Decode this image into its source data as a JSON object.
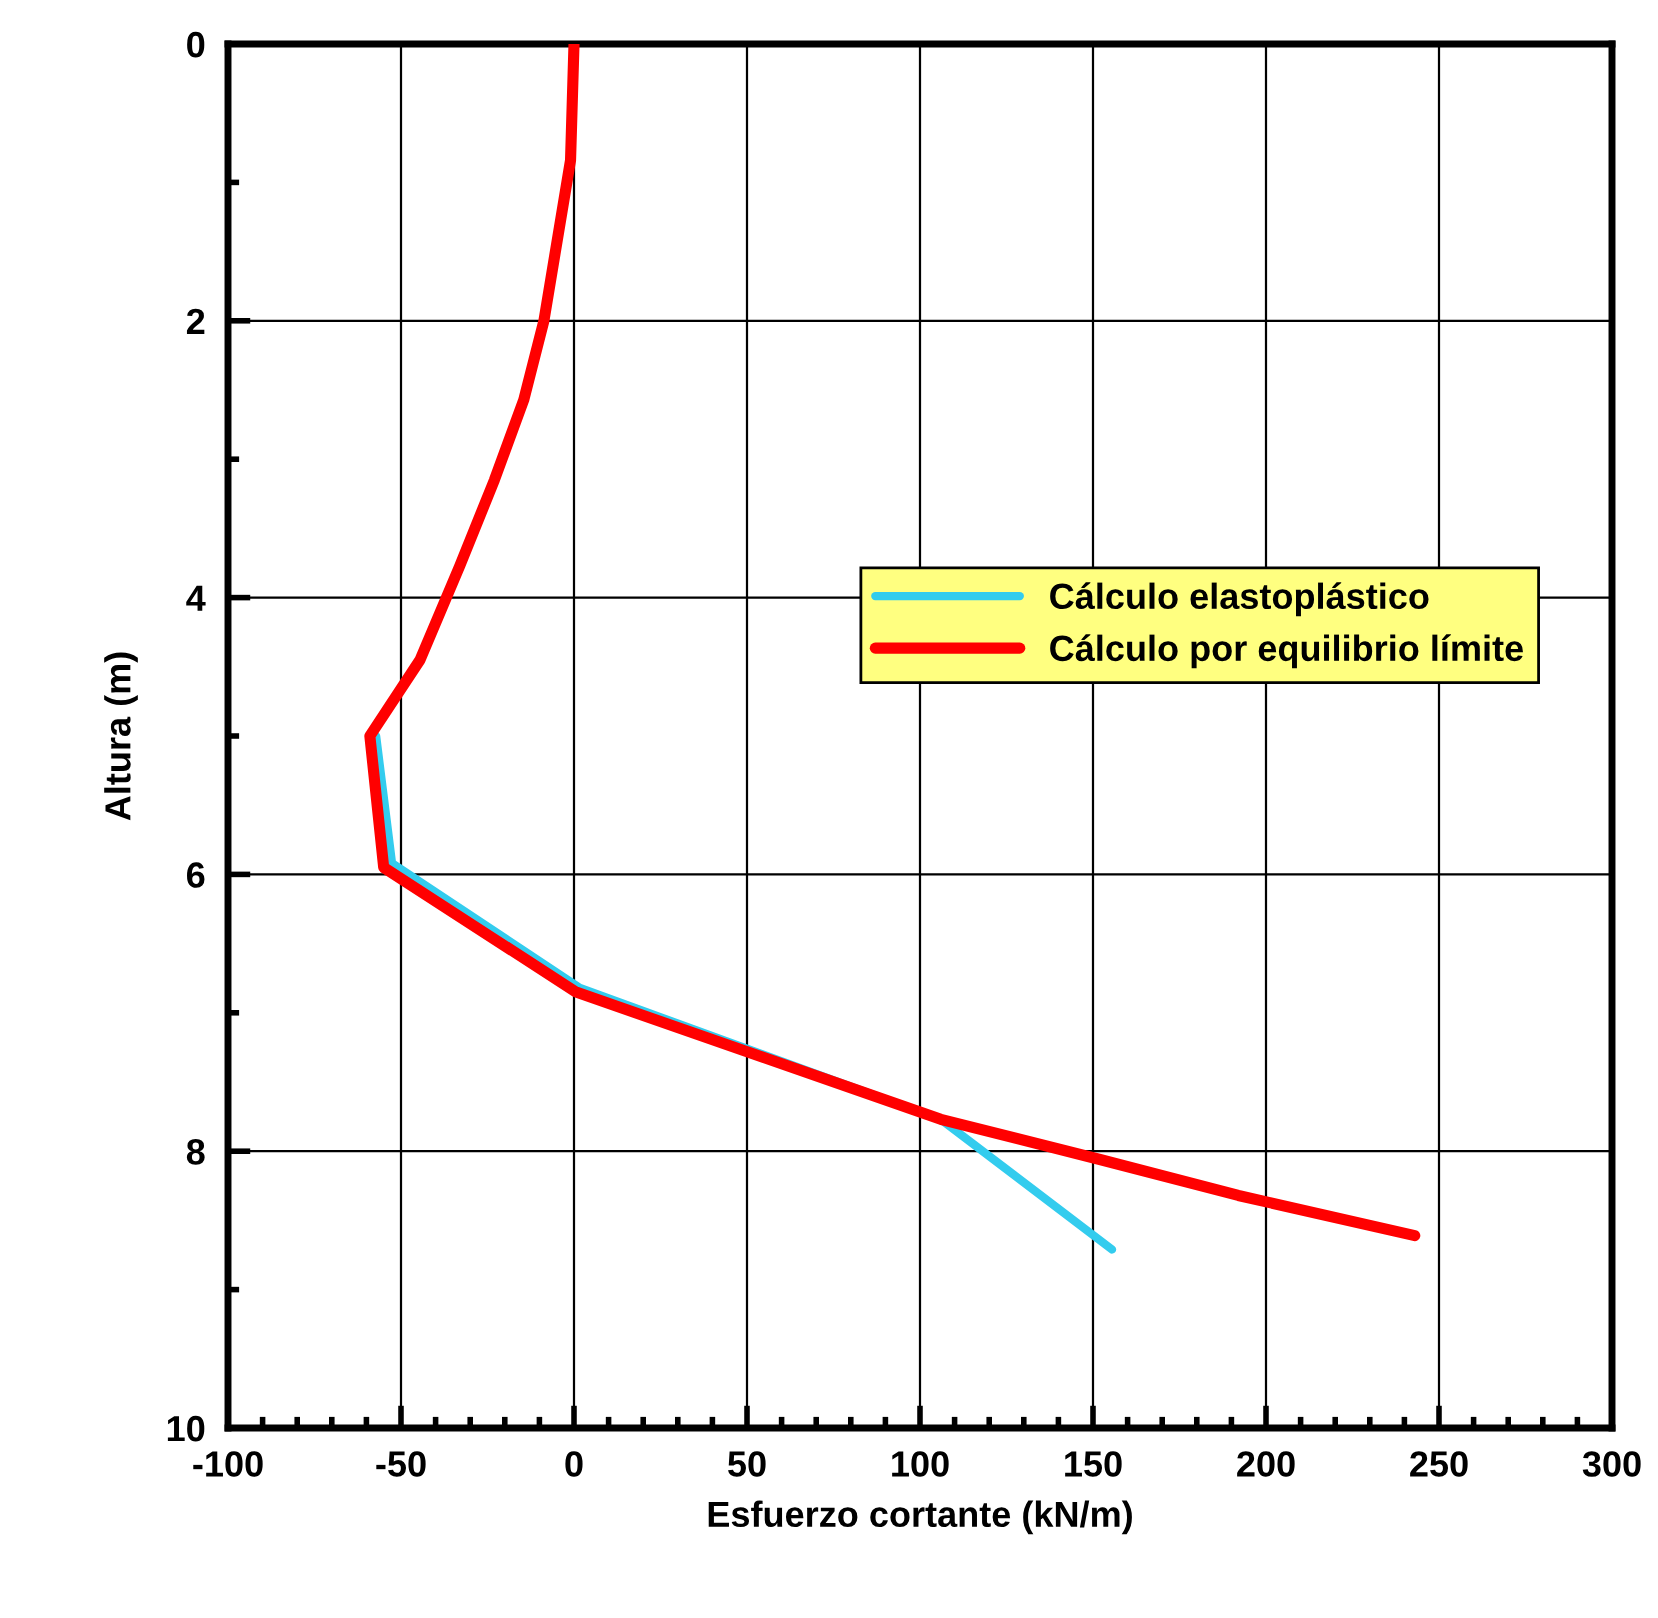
{
  "chart_data": {
    "type": "line",
    "xlabel": "Esfuerzo cortante (kN/m)",
    "ylabel": "Altura (m)",
    "xlim": [
      -100,
      300
    ],
    "xticks": [
      -100,
      -50,
      0,
      50,
      100,
      150,
      200,
      250,
      300
    ],
    "ylim": [
      10,
      0
    ],
    "yticks": [
      0,
      2,
      4,
      6,
      8,
      10
    ],
    "grid": true,
    "legend": "right",
    "marker": "none",
    "line_style": "solid",
    "series": [
      {
        "name": "Cálculo elastoplástico",
        "color": "#33ccee",
        "x": [
          -57.2,
          -52.6,
          1.7,
          106,
          155.5
        ],
        "values": [
          5.0,
          5.92,
          6.82,
          7.77,
          8.71
        ]
      },
      {
        "name": "Cálculo por equilibrio límite",
        "color": "#ff0000",
        "x": [
          0,
          -1,
          -8.7,
          -14.5,
          -23,
          -33,
          -44.5,
          -59,
          -55,
          0.6,
          106,
          152,
          192,
          243
        ],
        "values": [
          0,
          0.84,
          2.0,
          2.57,
          3.15,
          3.77,
          4.45,
          5.0,
          5.95,
          6.85,
          7.77,
          8.06,
          8.32,
          8.61
        ]
      }
    ]
  }
}
